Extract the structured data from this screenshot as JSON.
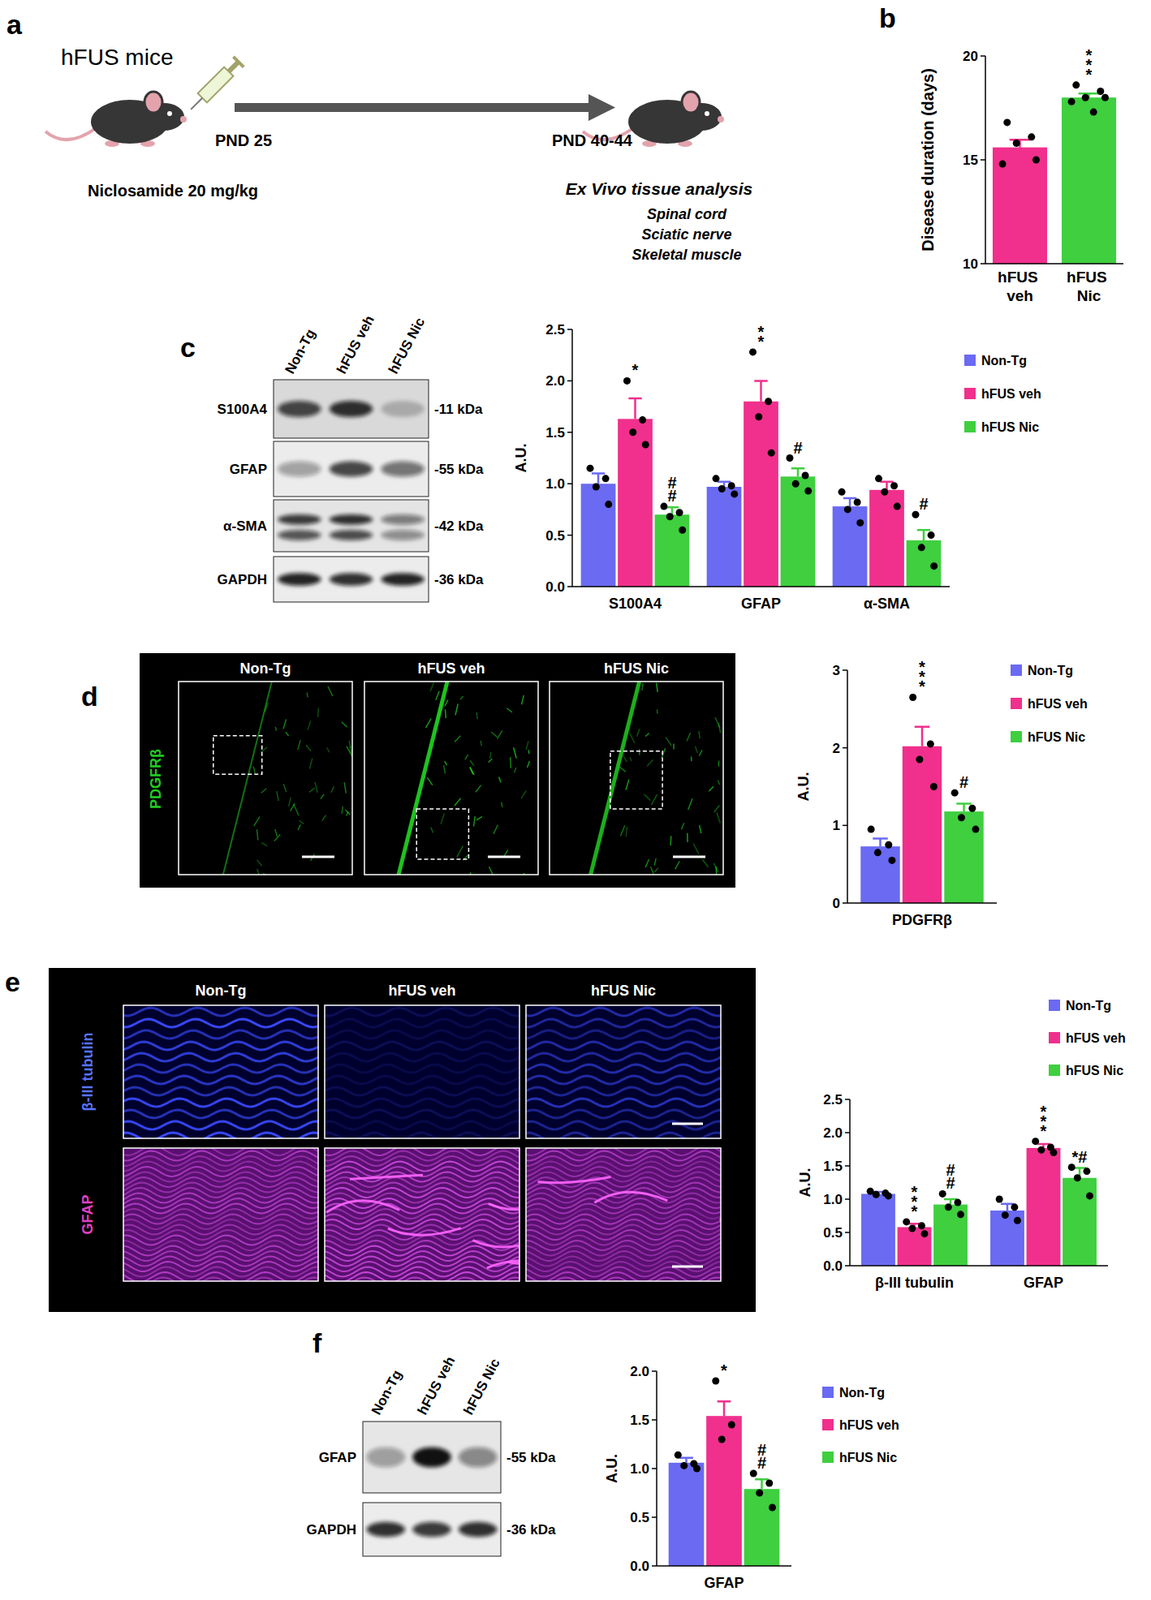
{
  "chart_data": [
    {
      "type": "bar",
      "y_label": "Disease duration (days)",
      "categories": [
        "hFUS veh",
        "hFUS Nic"
      ],
      "series": [
        {
          "values": [
            15.6,
            18.0
          ],
          "colors": [
            "#f0308c",
            "#3fcf3f"
          ],
          "errors": [
            0.37,
            0.19
          ],
          "points": [
            [
              16.8,
              16.1,
              15.8,
              15.0,
              14.8
            ],
            [
              18.6,
              18.3,
              18.0,
              18.0,
              17.8,
              17.3
            ]
          ],
          "annotations": [
            null,
            "***"
          ]
        }
      ],
      "ylim": [
        10,
        20
      ],
      "yticks": [
        10,
        15,
        20
      ]
    },
    {
      "type": "bar",
      "y_label": "A.U.",
      "categories": [
        "S100A4",
        "GFAP",
        "α-SMA"
      ],
      "series": [
        {
          "name": "Non-Tg",
          "color": "#6a6af2",
          "values": [
            1.0,
            0.97,
            0.78
          ],
          "errors": [
            0.1,
            0.05,
            0.08
          ],
          "points": [
            [
              1.15,
              1.05,
              0.97,
              0.8
            ],
            [
              1.05,
              0.98,
              0.95,
              0.9
            ],
            [
              0.92,
              0.82,
              0.75,
              0.62
            ]
          ]
        },
        {
          "name": "hFUS veh",
          "color": "#f0308c",
          "values": [
            1.63,
            1.8,
            0.94
          ],
          "errors": [
            0.2,
            0.2,
            0.08
          ],
          "points": [
            [
              2.0,
              1.62,
              1.5,
              1.38
            ],
            [
              2.28,
              1.8,
              1.65,
              1.3
            ],
            [
              1.05,
              0.98,
              0.92,
              0.78
            ]
          ],
          "annotations": [
            "*",
            "**",
            null
          ]
        },
        {
          "name": "hFUS Nic",
          "color": "#3fcf3f",
          "values": [
            0.7,
            1.07,
            0.45
          ],
          "errors": [
            0.07,
            0.08,
            0.1
          ],
          "points": [
            [
              0.78,
              0.72,
              0.68,
              0.55
            ],
            [
              1.25,
              1.08,
              1.0,
              0.93
            ],
            [
              0.7,
              0.5,
              0.38,
              0.2
            ]
          ],
          "annotations": [
            "##",
            "#",
            "#"
          ]
        }
      ],
      "ylim": [
        0,
        2.5
      ],
      "yticks": [
        {
          "value": 0,
          "label": "0.0"
        },
        {
          "value": 0.5,
          "label": "0.5"
        },
        {
          "value": 1,
          "label": "1.0"
        },
        {
          "value": 1.5,
          "label": "1.5"
        },
        {
          "value": 2,
          "label": "2.0"
        },
        {
          "value": 2.5,
          "label": "2.5"
        }
      ],
      "legend": "upper right"
    },
    {
      "type": "bar",
      "y_label": "A.U.",
      "categories": [
        "PDGFRβ"
      ],
      "series": [
        {
          "name": "Non-Tg",
          "color": "#6a6af2",
          "values": [
            0.73
          ],
          "errors": [
            0.1
          ],
          "points": [
            [
              0.95,
              0.75,
              0.65,
              0.55
            ]
          ]
        },
        {
          "name": "hFUS veh",
          "color": "#f0308c",
          "values": [
            2.02
          ],
          "errors": [
            0.25
          ],
          "points": [
            [
              2.65,
              2.05,
              1.85,
              1.5
            ]
          ],
          "annotations": [
            "***"
          ]
        },
        {
          "name": "hFUS Nic",
          "color": "#3fcf3f",
          "values": [
            1.18
          ],
          "errors": [
            0.1
          ],
          "points": [
            [
              1.42,
              1.22,
              1.1,
              0.95
            ]
          ],
          "annotations": [
            "#"
          ]
        }
      ],
      "ylim": [
        0,
        3
      ],
      "yticks": [
        0,
        1,
        2,
        3
      ],
      "legend": "upper right"
    },
    {
      "type": "bar",
      "y_label": "A.U.",
      "categories": [
        "β-III tubulin",
        "GFAP"
      ],
      "series": [
        {
          "name": "Non-Tg",
          "color": "#6a6af2",
          "values": [
            1.08,
            0.83
          ],
          "errors": [
            0.03,
            0.1
          ],
          "points": [
            [
              1.12,
              1.09,
              1.07,
              1.05
            ],
            [
              1.0,
              0.88,
              0.76,
              0.68
            ]
          ]
        },
        {
          "name": "hFUS veh",
          "color": "#f0308c",
          "values": [
            0.58,
            1.77
          ],
          "errors": [
            0.05,
            0.06
          ],
          "points": [
            [
              0.66,
              0.6,
              0.56,
              0.48
            ],
            [
              1.87,
              1.78,
              1.74,
              1.7
            ]
          ],
          "annotations": [
            "***",
            "***"
          ]
        },
        {
          "name": "hFUS Nic",
          "color": "#3fcf3f",
          "values": [
            0.92,
            1.32
          ],
          "errors": [
            0.08,
            0.15
          ],
          "points": [
            [
              1.08,
              0.95,
              0.88,
              0.77
            ],
            [
              1.48,
              1.42,
              1.32,
              1.05
            ]
          ],
          "annotations": [
            "##",
            "*#"
          ]
        }
      ],
      "ylim": [
        0,
        2.5
      ],
      "yticks": [
        {
          "value": 0,
          "label": "0.0"
        },
        {
          "value": 0.5,
          "label": "0.5"
        },
        {
          "value": 1,
          "label": "1.0"
        },
        {
          "value": 1.5,
          "label": "1.5"
        },
        {
          "value": 2,
          "label": "2.0"
        },
        {
          "value": 2.5,
          "label": "2.5"
        }
      ],
      "legend": "upper right"
    },
    {
      "type": "bar",
      "y_label": "A.U.",
      "categories": [
        "GFAP"
      ],
      "series": [
        {
          "name": "Non-Tg",
          "color": "#6a6af2",
          "values": [
            1.06
          ],
          "errors": [
            0.05
          ],
          "points": [
            [
              1.14,
              1.05,
              1.03,
              1.0
            ]
          ]
        },
        {
          "name": "hFUS veh",
          "color": "#f0308c",
          "values": [
            1.54
          ],
          "errors": [
            0.15
          ],
          "points": [
            [
              1.9,
              1.45,
              1.3
            ]
          ],
          "annotations": [
            "*"
          ]
        },
        {
          "name": "hFUS Nic",
          "color": "#3fcf3f",
          "values": [
            0.79
          ],
          "errors": [
            0.1
          ],
          "points": [
            [
              0.95,
              0.85,
              0.75,
              0.6
            ]
          ],
          "annotations": [
            "##"
          ]
        }
      ],
      "ylim": [
        0,
        2
      ],
      "yticks": [
        {
          "value": 0,
          "label": "0.0"
        },
        {
          "value": 0.5,
          "label": "0.5"
        },
        {
          "value": 1,
          "label": "1.0"
        },
        {
          "value": 1.5,
          "label": "1.5"
        },
        {
          "value": 2,
          "label": "2.0"
        }
      ],
      "legend": "upper right"
    }
  ],
  "figure": {
    "panel_labels": [
      "a",
      "b",
      "c",
      "d",
      "e",
      "f"
    ],
    "schematic": {
      "title": "hFUS mice",
      "start": "PND 25",
      "treatment": "Niclosamide 20 mg/kg",
      "end": "PND 40-44",
      "analysis": "Ex Vivo tissue analysis",
      "tissues": [
        "Spinal cord",
        "Sciatic nerve",
        "Skeletal muscle"
      ]
    },
    "blot_c": {
      "lanes": [
        "Non-Tg",
        "hFUS veh",
        "hFUS Nic"
      ],
      "rows": [
        "S100A4",
        "GFAP",
        "α-SMA",
        "GAPDH"
      ],
      "sizes": [
        "-11 kDa",
        "-55 kDa",
        "-42 kDa",
        "-36 kDa"
      ]
    },
    "image_d": {
      "columns": [
        "Non-Tg",
        "hFUS veh",
        "hFUS Nic"
      ],
      "stain": "PDGFRβ"
    },
    "image_e": {
      "columns": [
        "Non-Tg",
        "hFUS veh",
        "hFUS Nic"
      ],
      "stains": [
        "β-III tubulin",
        "GFAP"
      ]
    },
    "blot_f": {
      "lanes": [
        "Non-Tg",
        "hFUS veh",
        "hFUS Nic"
      ],
      "rows": [
        "GFAP",
        "GAPDH"
      ],
      "sizes": [
        "-55 kDa",
        "-36 kDa"
      ]
    }
  }
}
